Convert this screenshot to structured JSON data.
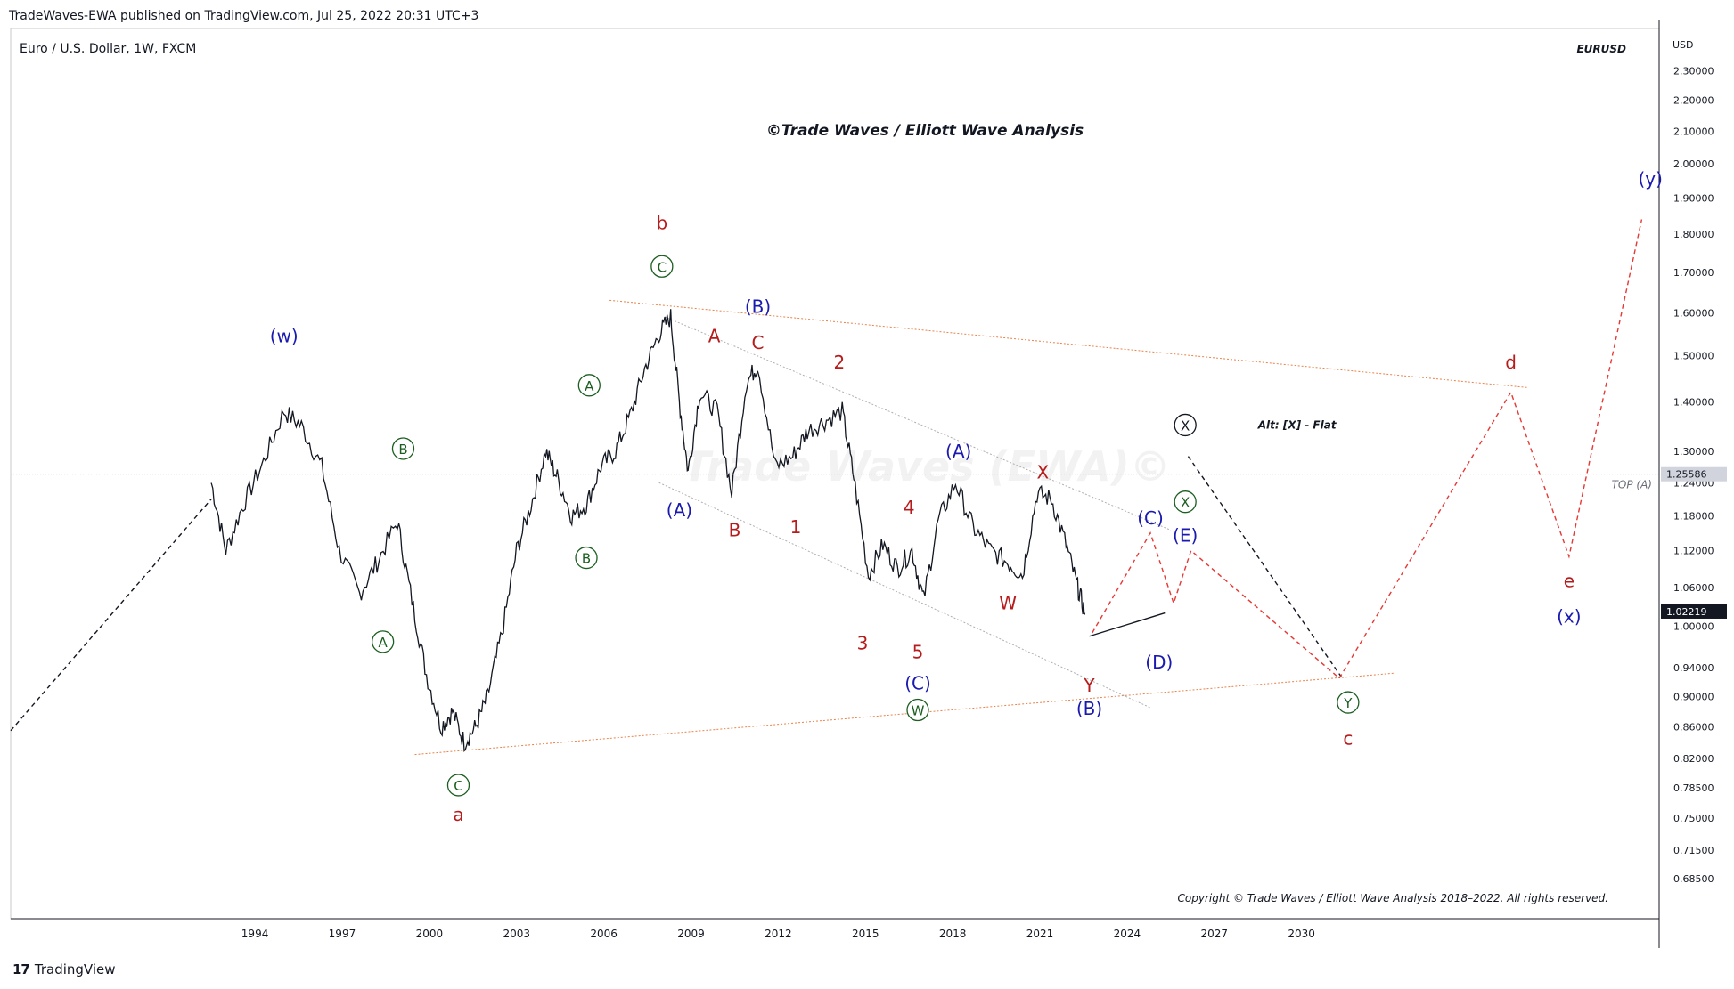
{
  "header": {
    "published": "TradeWaves-EWA published on TradingView.com, Jul 25, 2022 20:31 UTC+3"
  },
  "footer": {
    "brand": "TradingView",
    "logo_icon": "tradingview-logo-icon"
  },
  "chart_data": {
    "type": "line",
    "instrument": "Euro / U.S. Dollar, 1W, FXCM",
    "symbol": "EURUSD",
    "title": "©Trade Waves / Elliott Wave Analysis",
    "watermark": "Trade Waves (EWA)©",
    "copyright": "Copyright © Trade Waves / Elliott Wave Analysis 2018–2022. All rights reserved.",
    "currency_label": "USD",
    "y_scale": "log",
    "ylim": [
      0.645,
      2.45
    ],
    "xlim": [
      1985.6,
      2042.3
    ],
    "y_ticks": [
      "2.30000",
      "2.20000",
      "2.10000",
      "2.00000",
      "1.90000",
      "1.80000",
      "1.70000",
      "1.60000",
      "1.50000",
      "1.40000",
      "1.30000",
      "1.24000",
      "1.18000",
      "1.12000",
      "1.06000",
      "1.00000",
      "0.94000",
      "0.90000",
      "0.86000",
      "0.82000",
      "0.78500",
      "0.75000",
      "0.71500",
      "0.68500"
    ],
    "x_ticks": [
      "1994",
      "1997",
      "2000",
      "2003",
      "2006",
      "2009",
      "2012",
      "2015",
      "2018",
      "2021",
      "2024",
      "2027",
      "2030"
    ],
    "price_labels": [
      {
        "text": "1.25586",
        "value": 1.25586,
        "caption": "TOP (A)",
        "color": "#d1d4dc"
      },
      {
        "text": "1.02219",
        "value": 1.02219,
        "color": "#131722"
      }
    ],
    "colors": {
      "price": "#131722",
      "red": "#b71c1c",
      "blue": "#1a1ab0",
      "green": "#1b5e20",
      "channel": "#e8834a",
      "grey_line": "#b0b0b0",
      "projection_red": "#e53935"
    },
    "series": [
      {
        "x": [
          1992.5,
          1993.0,
          1993.6,
          1994.3,
          1995.0,
          1995.6,
          1996.3,
          1996.9,
          1997.6,
          1998.2,
          1998.9,
          1999.4,
          1999.9,
          2000.4,
          2000.8,
          2001.2,
          2001.6,
          2002.0,
          2002.5,
          2003.0,
          2003.5,
          2004.0,
          2004.4,
          2004.9,
          2005.4,
          2005.9,
          2006.4,
          2006.9,
          2007.4,
          2007.9,
          2008.3,
          2008.6,
          2008.9,
          2009.3,
          2009.9,
          2010.4,
          2010.9,
          2011.3,
          2011.9,
          2012.5,
          2013.0,
          2013.6,
          2014.2,
          2014.6,
          2015.1,
          2015.6,
          2016.1,
          2016.6,
          2017.0,
          2017.5,
          2018.1,
          2018.7,
          2019.3,
          2019.9,
          2020.4,
          2020.9,
          2021.4,
          2021.9,
          2022.3,
          2022.55
        ],
        "y": [
          1.24,
          1.12,
          1.2,
          1.28,
          1.38,
          1.35,
          1.27,
          1.12,
          1.05,
          1.1,
          1.17,
          1.04,
          0.93,
          0.86,
          0.88,
          0.84,
          0.86,
          0.9,
          0.99,
          1.12,
          1.2,
          1.3,
          1.25,
          1.18,
          1.2,
          1.27,
          1.3,
          1.37,
          1.47,
          1.55,
          1.59,
          1.4,
          1.26,
          1.42,
          1.38,
          1.22,
          1.44,
          1.48,
          1.27,
          1.29,
          1.34,
          1.36,
          1.38,
          1.25,
          1.08,
          1.13,
          1.09,
          1.12,
          1.04,
          1.17,
          1.24,
          1.16,
          1.12,
          1.1,
          1.08,
          1.22,
          1.21,
          1.13,
          1.06,
          1.02
        ]
      }
    ],
    "annotations": [
      {
        "text": "(w)",
        "x": 1995.0,
        "y": 1.545,
        "color": "blue"
      },
      {
        "text": "b",
        "x": 2008.0,
        "y": 1.83,
        "color": "red"
      },
      {
        "text": "C",
        "x": 2008.0,
        "y": 1.715,
        "color": "green",
        "circled": true
      },
      {
        "text": "(B)",
        "x": 2011.3,
        "y": 1.615,
        "color": "blue"
      },
      {
        "text": "A",
        "x": 2009.8,
        "y": 1.545,
        "color": "red"
      },
      {
        "text": "C",
        "x": 2011.3,
        "y": 1.53,
        "color": "red"
      },
      {
        "text": "2",
        "x": 2014.1,
        "y": 1.485,
        "color": "red"
      },
      {
        "text": "A",
        "x": 2005.5,
        "y": 1.435,
        "color": "green",
        "circled": true
      },
      {
        "text": "B",
        "x": 1999.1,
        "y": 1.305,
        "color": "green",
        "circled": true
      },
      {
        "text": "(A)",
        "x": 2018.2,
        "y": 1.3,
        "color": "blue"
      },
      {
        "text": "X",
        "x": 2021.1,
        "y": 1.26,
        "color": "red"
      },
      {
        "text": "4",
        "x": 2016.5,
        "y": 1.195,
        "color": "red"
      },
      {
        "text": "(A)",
        "x": 2008.6,
        "y": 1.19,
        "color": "blue"
      },
      {
        "text": "B",
        "x": 2010.5,
        "y": 1.155,
        "color": "red"
      },
      {
        "text": "1",
        "x": 2012.6,
        "y": 1.16,
        "color": "red"
      },
      {
        "text": "B",
        "x": 2005.4,
        "y": 1.108,
        "color": "green",
        "circled": true
      },
      {
        "text": "W",
        "x": 2019.9,
        "y": 1.035,
        "color": "red"
      },
      {
        "text": "A",
        "x": 1998.4,
        "y": 0.977,
        "color": "green",
        "circled": true
      },
      {
        "text": "3",
        "x": 2014.9,
        "y": 0.975,
        "color": "red"
      },
      {
        "text": "5",
        "x": 2016.8,
        "y": 0.962,
        "color": "red"
      },
      {
        "text": "(C)",
        "x": 2016.8,
        "y": 0.918,
        "color": "blue"
      },
      {
        "text": "W",
        "x": 2016.8,
        "y": 0.882,
        "color": "green",
        "circled": true
      },
      {
        "text": "Y",
        "x": 2022.7,
        "y": 0.915,
        "color": "red"
      },
      {
        "text": "(B)",
        "x": 2022.7,
        "y": 0.884,
        "color": "blue"
      },
      {
        "text": "(D)",
        "x": 2025.1,
        "y": 0.947,
        "color": "blue"
      },
      {
        "text": "C",
        "x": 2001.0,
        "y": 0.788,
        "color": "green",
        "circled": true
      },
      {
        "text": "a",
        "x": 2001.0,
        "y": 0.754,
        "color": "red"
      },
      {
        "text": "(C)",
        "x": 2024.8,
        "y": 1.176,
        "color": "blue"
      },
      {
        "text": "X",
        "x": 2026.0,
        "y": 1.205,
        "color": "green",
        "circled": true
      },
      {
        "text": "(E)",
        "x": 2026.0,
        "y": 1.146,
        "color": "blue"
      },
      {
        "text": "X",
        "x": 2026.0,
        "y": 1.352,
        "color": "black",
        "circled": true
      },
      {
        "text": "Alt: [X] - Flat",
        "x": 2028.5,
        "y": 1.352,
        "color": "black",
        "small": true
      },
      {
        "text": "Y",
        "x": 2031.6,
        "y": 0.892,
        "color": "green",
        "circled": true
      },
      {
        "text": "c",
        "x": 2031.6,
        "y": 0.845,
        "color": "red"
      },
      {
        "text": "d",
        "x": 2037.2,
        "y": 1.485,
        "color": "red"
      },
      {
        "text": "e",
        "x": 2039.2,
        "y": 1.07,
        "color": "red"
      },
      {
        "text": "(x)",
        "x": 2039.2,
        "y": 1.015,
        "color": "blue"
      },
      {
        "text": "(y)",
        "x": 2042.0,
        "y": 1.955,
        "color": "blue"
      }
    ],
    "lines": [
      {
        "kind": "channel",
        "from": [
          2006.2,
          1.63
        ],
        "to": [
          2037.8,
          1.43
        ]
      },
      {
        "kind": "channel",
        "from": [
          1999.5,
          0.825
        ],
        "to": [
          2033.2,
          0.932
        ]
      },
      {
        "kind": "grey",
        "from": [
          2008.1,
          1.59
        ],
        "to": [
          2025.5,
          1.155
        ]
      },
      {
        "kind": "grey",
        "from": [
          2007.9,
          1.24
        ],
        "to": [
          2024.8,
          0.885
        ]
      },
      {
        "kind": "dash_black",
        "points": [
          [
            1985.6,
            0.855
          ],
          [
            1992.5,
            1.21
          ]
        ]
      },
      {
        "kind": "dash_black",
        "points": [
          [
            2026.1,
            1.29
          ],
          [
            2031.4,
            0.925
          ]
        ]
      },
      {
        "kind": "dash_red",
        "points": [
          [
            2022.8,
            0.99
          ],
          [
            2024.8,
            1.15
          ],
          [
            2025.6,
            1.035
          ],
          [
            2026.2,
            1.12
          ],
          [
            2031.3,
            0.925
          ],
          [
            2037.2,
            1.42
          ],
          [
            2039.2,
            1.11
          ],
          [
            2041.7,
            1.84
          ]
        ]
      },
      {
        "kind": "solid",
        "points": [
          [
            2022.7,
            0.985
          ],
          [
            2025.3,
            1.02
          ]
        ]
      }
    ]
  }
}
